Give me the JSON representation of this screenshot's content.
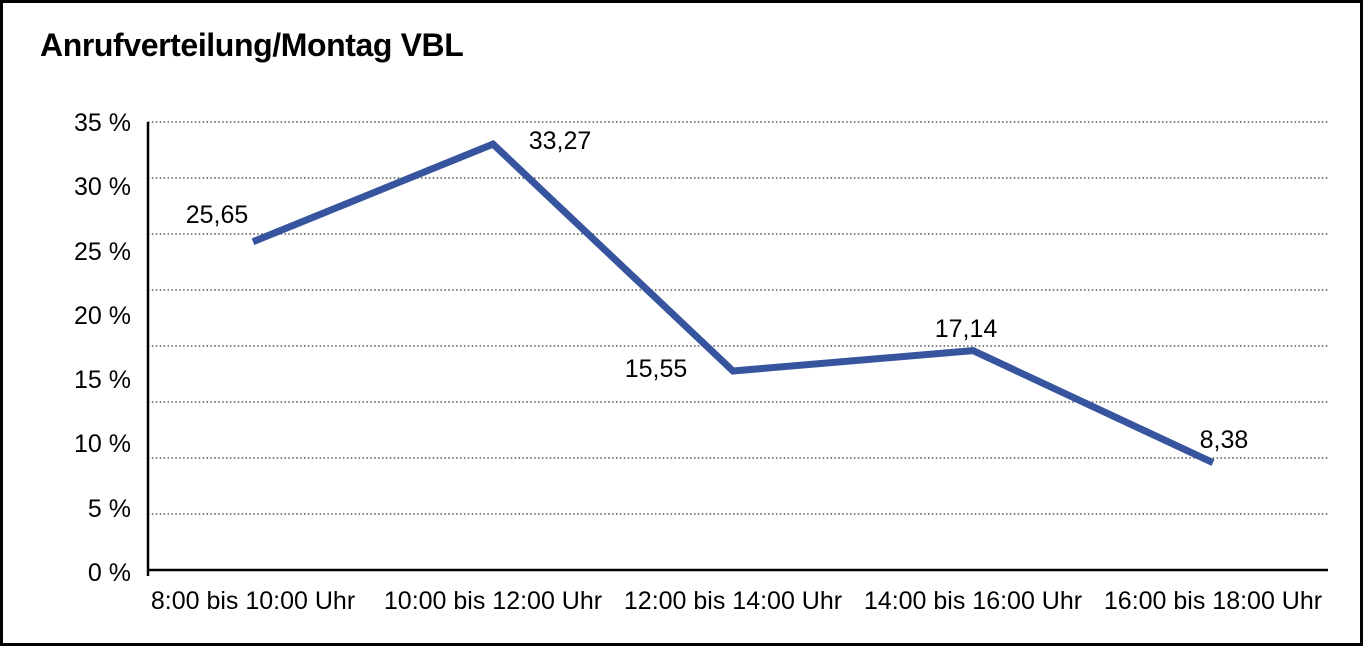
{
  "title": "Anrufverteilung/Montag VBL",
  "colors": {
    "line": "#37549E",
    "grid": "#555555",
    "axis": "#000000",
    "text": "#000000",
    "background": "#FFFFFF",
    "border": "#000000"
  },
  "chart_data": {
    "type": "line",
    "title": "Anrufverteilung/Montag VBL",
    "categories": [
      "8:00 bis 10:00 Uhr",
      "10:00 bis 12:00 Uhr",
      "12:00 bis 14:00 Uhr",
      "14:00 bis 16:00 Uhr",
      "16:00 bis 18:00 Uhr"
    ],
    "values": [
      25.65,
      33.27,
      15.55,
      17.14,
      8.38
    ],
    "value_labels": [
      "25,65",
      "33,27",
      "15,55",
      "17,14",
      "8,38"
    ],
    "y_ticks": [
      "35 %",
      "30 %",
      "25 %",
      "20 %",
      "15 %",
      "10 %",
      "5 %",
      "0 %"
    ],
    "y_tick_values": [
      35,
      30,
      25,
      20,
      15,
      10,
      5,
      0
    ],
    "ylim": [
      0,
      35
    ],
    "grid": "horizontal-dotted",
    "legend": "none"
  }
}
